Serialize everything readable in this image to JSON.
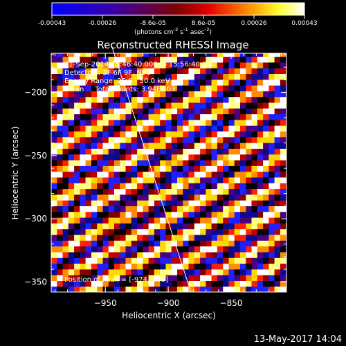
{
  "colorbar": {
    "ticks": [
      "-0.00043",
      "-0.00026",
      "-8.6e-05",
      "8.6e-05",
      "0.00026",
      "0.00043"
    ],
    "units_main": "(photons cm",
    "units_sup1": "-2",
    "units_mid": " s",
    "units_sup2": "-1",
    "units_end": " asec",
    "units_sup3": "-2",
    "units_close": ")",
    "range": [
      -0.00043,
      0.00043
    ]
  },
  "chart_data": {
    "type": "heatmap",
    "title": "Reconstructed RHESSI Image",
    "xlabel": "Heliocentric X (arcsec)",
    "ylabel": "Heliocentric Y (arcsec)",
    "xlim": [
      -993,
      -806
    ],
    "ylim": [
      -358,
      -169
    ],
    "x_ticks": [
      -950,
      -900,
      -850
    ],
    "y_ticks": [
      -200,
      -250,
      -300,
      -350
    ],
    "x_tick_labels": [
      "−950",
      "−900",
      "−850"
    ],
    "y_tick_labels": [
      "−200",
      "−250",
      "−300",
      "−350"
    ],
    "colormap_colors": [
      "#000000",
      "#0000ff",
      "#ff0000",
      "#ffff00",
      "#ffffff"
    ],
    "pattern": {
      "band_direction": "diagonal, lower-left to upper-right",
      "band_spacing_arcsec": 21,
      "pixel_size_arcsec": 4.55
    },
    "limb_line": {
      "x": [
        -945,
        -882
      ],
      "y": [
        -163,
        -358
      ]
    },
    "annotations": {
      "time": "21-Sep-2014 15:46:40.000 to 15:56:40.000",
      "detectors": "Detectors: 3F 6F 9F, Nt 0",
      "energy": "Energy Range: 25.0 - 50.0 keV",
      "clean": "Clean     Total counts: 3.94E+03",
      "peak": "Position of Peak = [-974,-180]"
    }
  },
  "footer": {
    "timestamp": "13-May-2017 14:04"
  }
}
